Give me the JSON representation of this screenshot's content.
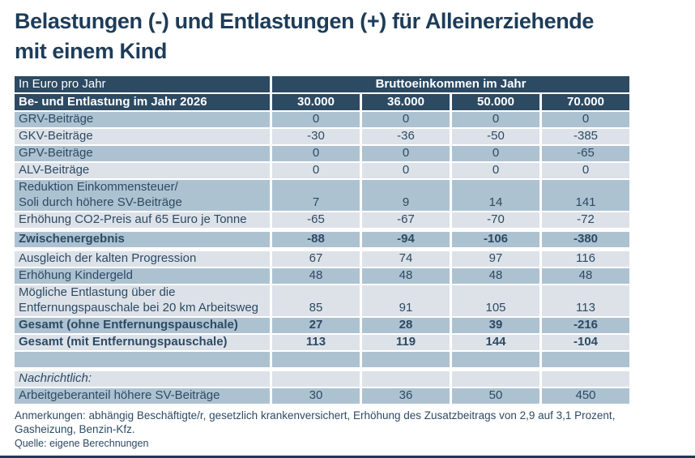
{
  "title": "Belastungen (-) und Entlastungen (+) für Alleinerziehende\nmit einem Kind",
  "chart_data": {
    "type": "table",
    "title": "Belastungen (-) und Entlastungen (+) für Alleinerziehende mit einem Kind",
    "unit_label": "In Euro pro Jahr",
    "col_group_label": "Bruttoeinkommen im Jahr",
    "row_header": "Be- und Entlastung im Jahr 2026",
    "columns": [
      "30.000",
      "36.000",
      "50.000",
      "70.000"
    ],
    "rows": [
      {
        "label": "GRV-Beiträge",
        "values": [
          "0",
          "0",
          "0",
          "0"
        ],
        "shade": "dark"
      },
      {
        "label": "GKV-Beiträge",
        "values": [
          "-30",
          "-36",
          "-50",
          "-385"
        ],
        "shade": "light"
      },
      {
        "label": "GPV-Beiträge",
        "values": [
          "0",
          "0",
          "0",
          "-65"
        ],
        "shade": "dark"
      },
      {
        "label": "ALV-Beiträge",
        "values": [
          "0",
          "0",
          "0",
          "0"
        ],
        "shade": "light"
      },
      {
        "label": "Reduktion Einkommensteuer/\nSoli durch höhere SV-Beiträge",
        "values": [
          "7",
          "9",
          "14",
          "141"
        ],
        "shade": "dark",
        "two_line": true
      },
      {
        "label": "Erhöhung CO2-Preis auf 65 Euro je Tonne",
        "values": [
          "-65",
          "-67",
          "-70",
          "-72"
        ],
        "shade": "light"
      },
      {
        "label": "Zwischenergebnis",
        "values": [
          "-88",
          "-94",
          "-106",
          "-380"
        ],
        "shade": "dark",
        "bold": true,
        "gap_before": true
      },
      {
        "label": "Ausgleich der kalten Progression",
        "values": [
          "67",
          "74",
          "97",
          "116"
        ],
        "shade": "light",
        "gap_before": true
      },
      {
        "label": "Erhöhung Kindergeld",
        "values": [
          "48",
          "48",
          "48",
          "48"
        ],
        "shade": "dark"
      },
      {
        "label": "Mögliche Entlastung über die\nEntfernungspauschale bei 20 km Arbeitsweg",
        "values": [
          "85",
          "91",
          "105",
          "113"
        ],
        "shade": "light",
        "two_line": true
      },
      {
        "label": "Gesamt (ohne Entfernungspauschale)",
        "values": [
          "27",
          "28",
          "39",
          "-216"
        ],
        "shade": "dark",
        "bold": true
      },
      {
        "label": "Gesamt (mit Entfernungspauschale)",
        "values": [
          "113",
          "119",
          "144",
          "-104"
        ],
        "shade": "light",
        "bold": true
      },
      {
        "label": "",
        "values": [
          "",
          "",
          "",
          ""
        ],
        "shade": "dark"
      },
      {
        "label": "Nachrichtlich:",
        "values": [
          "",
          "",
          "",
          ""
        ],
        "shade": "light",
        "italic": true,
        "gap_before": true
      },
      {
        "label": "Arbeitgeberanteil höhere SV-Beiträge",
        "values": [
          "30",
          "36",
          "50",
          "450"
        ],
        "shade": "dark"
      }
    ]
  },
  "footer": {
    "notes": "Anmerkungen: abhängig Beschäftigte/r, gesetzlich krankenversichert, Erhöhung des Zusatzbeitrags von 2,9 auf 3,1 Prozent,\nGasheizung, Benzin-Kfz.",
    "source": "Quelle: eigene Berechnungen"
  },
  "colors": {
    "header_bg": "#2d4a63",
    "row_dark": "#adc2d1",
    "row_light": "#dde2e9",
    "text": "#2d4a63",
    "title": "#1d3c59",
    "bottom_bar": "#1e3c5a"
  }
}
